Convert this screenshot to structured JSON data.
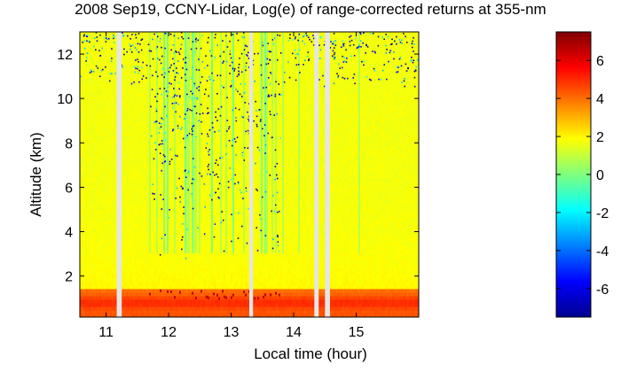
{
  "chart_data": {
    "type": "heatmap",
    "title": "2008 Sep19, CCNY-Lidar, Log(e) of range-corrected returns at 355-nm",
    "xlabel": "Local time (hour)",
    "ylabel": "Altitude (km)",
    "xlim": [
      10.58,
      16.0
    ],
    "ylim": [
      0.15,
      13.0
    ],
    "x_ticks": [
      11,
      12,
      13,
      14,
      15
    ],
    "y_ticks": [
      2,
      4,
      6,
      8,
      10,
      12
    ],
    "x_tick_labels": [
      "11",
      "12",
      "13",
      "14",
      "15"
    ],
    "y_tick_labels": [
      "2",
      "4",
      "6",
      "8",
      "10",
      "12"
    ],
    "colorbar": {
      "range": [
        -7.5,
        7.5
      ],
      "ticks": [
        -6,
        -4,
        -2,
        0,
        2,
        4,
        6
      ],
      "tick_labels": [
        "-6",
        "-4",
        "-2",
        "0",
        "2",
        "4",
        "6"
      ],
      "colormap": "jet"
    },
    "no_data_gaps_hours": [
      [
        11.17,
        11.25
      ],
      [
        13.29,
        13.35
      ],
      [
        14.33,
        14.4
      ],
      [
        14.5,
        14.58
      ]
    ],
    "profile": {
      "background_value": 1.7,
      "boundary_layer_top_km": 1.45,
      "boundary_layer_value": 3.9,
      "aerosol_peak_value": 5.0,
      "aerosol_peak_altitude_km": 0.8,
      "cloud_top_peak_value": 6.6
    },
    "high_noise_interval_hours": [
      11.7,
      13.8
    ],
    "grid": false
  }
}
